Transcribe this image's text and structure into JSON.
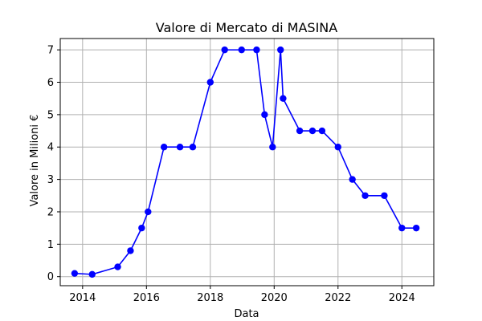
{
  "chart_data": {
    "type": "line",
    "title": "Valore di Mercato di MASINA",
    "xlabel": "Data",
    "ylabel": "Valore in Milioni €",
    "x_axis_kind": "year",
    "xlim": [
      2013.3,
      2025.0
    ],
    "ylim": [
      -0.28,
      7.35
    ],
    "x_ticks": [
      2014,
      2016,
      2018,
      2020,
      2022,
      2024
    ],
    "x_tick_labels": [
      "2014",
      "2016",
      "2018",
      "2020",
      "2022",
      "2024"
    ],
    "y_ticks": [
      0,
      1,
      2,
      3,
      4,
      5,
      6,
      7
    ],
    "y_tick_labels": [
      "0",
      "1",
      "2",
      "3",
      "4",
      "5",
      "6",
      "7"
    ],
    "grid": true,
    "legend": null,
    "colors": {
      "series": "#0000ff",
      "grid": "#b0b0b0",
      "axes": "#000000"
    },
    "series": [
      {
        "x": [
          2013.75,
          2014.3,
          2015.1,
          2015.5,
          2015.85,
          2016.05,
          2016.55,
          2017.05,
          2017.45,
          2018.0,
          2018.45,
          2018.98,
          2019.45,
          2019.7,
          2019.95,
          2020.2,
          2020.28,
          2020.8,
          2021.2,
          2021.5,
          2022.0,
          2022.45,
          2022.85,
          2023.45,
          2024.0,
          2024.45
        ],
        "y": [
          0.1,
          0.07,
          0.3,
          0.8,
          1.5,
          2.0,
          4.0,
          4.0,
          4.0,
          6.0,
          7.0,
          7.0,
          7.0,
          5.0,
          4.0,
          7.0,
          5.5,
          4.5,
          4.5,
          4.5,
          4.0,
          3.0,
          2.5,
          2.5,
          1.5,
          1.5
        ]
      }
    ]
  }
}
